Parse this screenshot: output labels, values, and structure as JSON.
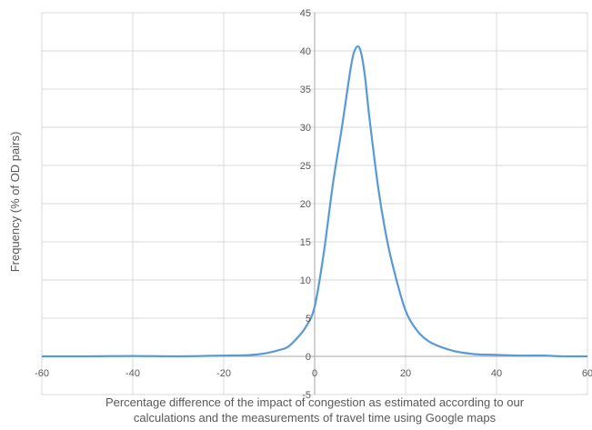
{
  "chart_data": {
    "type": "line",
    "title": "",
    "xlabel_lines": [
      "Percentage difference of the impact of congestion as estimated according to our",
      "calculations and the measurements of travel time using Google maps"
    ],
    "ylabel": "Frequency (% of OD pairs)",
    "xlim": [
      -60,
      60
    ],
    "ylim": [
      -5,
      45
    ],
    "x_ticks": [
      "-60",
      "-40",
      "-20",
      "0",
      "20",
      "40",
      "60"
    ],
    "y_ticks": [
      "-5",
      "0",
      "5",
      "10",
      "15",
      "20",
      "25",
      "30",
      "35",
      "40",
      "45"
    ],
    "grid": true,
    "legend": "none",
    "series": [
      {
        "color": "#5b9bd5",
        "x": [
          -60,
          -50,
          -40,
          -30,
          -20,
          -15,
          -12,
          -10,
          -8,
          -6,
          -4,
          -2,
          0,
          2,
          4,
          6,
          8,
          9,
          10,
          11,
          12,
          14,
          16,
          18,
          20,
          22,
          25,
          30,
          35,
          40,
          45,
          50,
          55,
          60
        ],
        "y": [
          0,
          0,
          0.05,
          0,
          0.1,
          0.15,
          0.3,
          0.5,
          0.8,
          1.2,
          2.3,
          3.8,
          6.5,
          13.5,
          22.5,
          30,
          38,
          40.3,
          40.2,
          37,
          31.5,
          22,
          15,
          10,
          6,
          3.8,
          2,
          0.8,
          0.3,
          0.2,
          0.1,
          0.1,
          0,
          0
        ]
      }
    ]
  }
}
